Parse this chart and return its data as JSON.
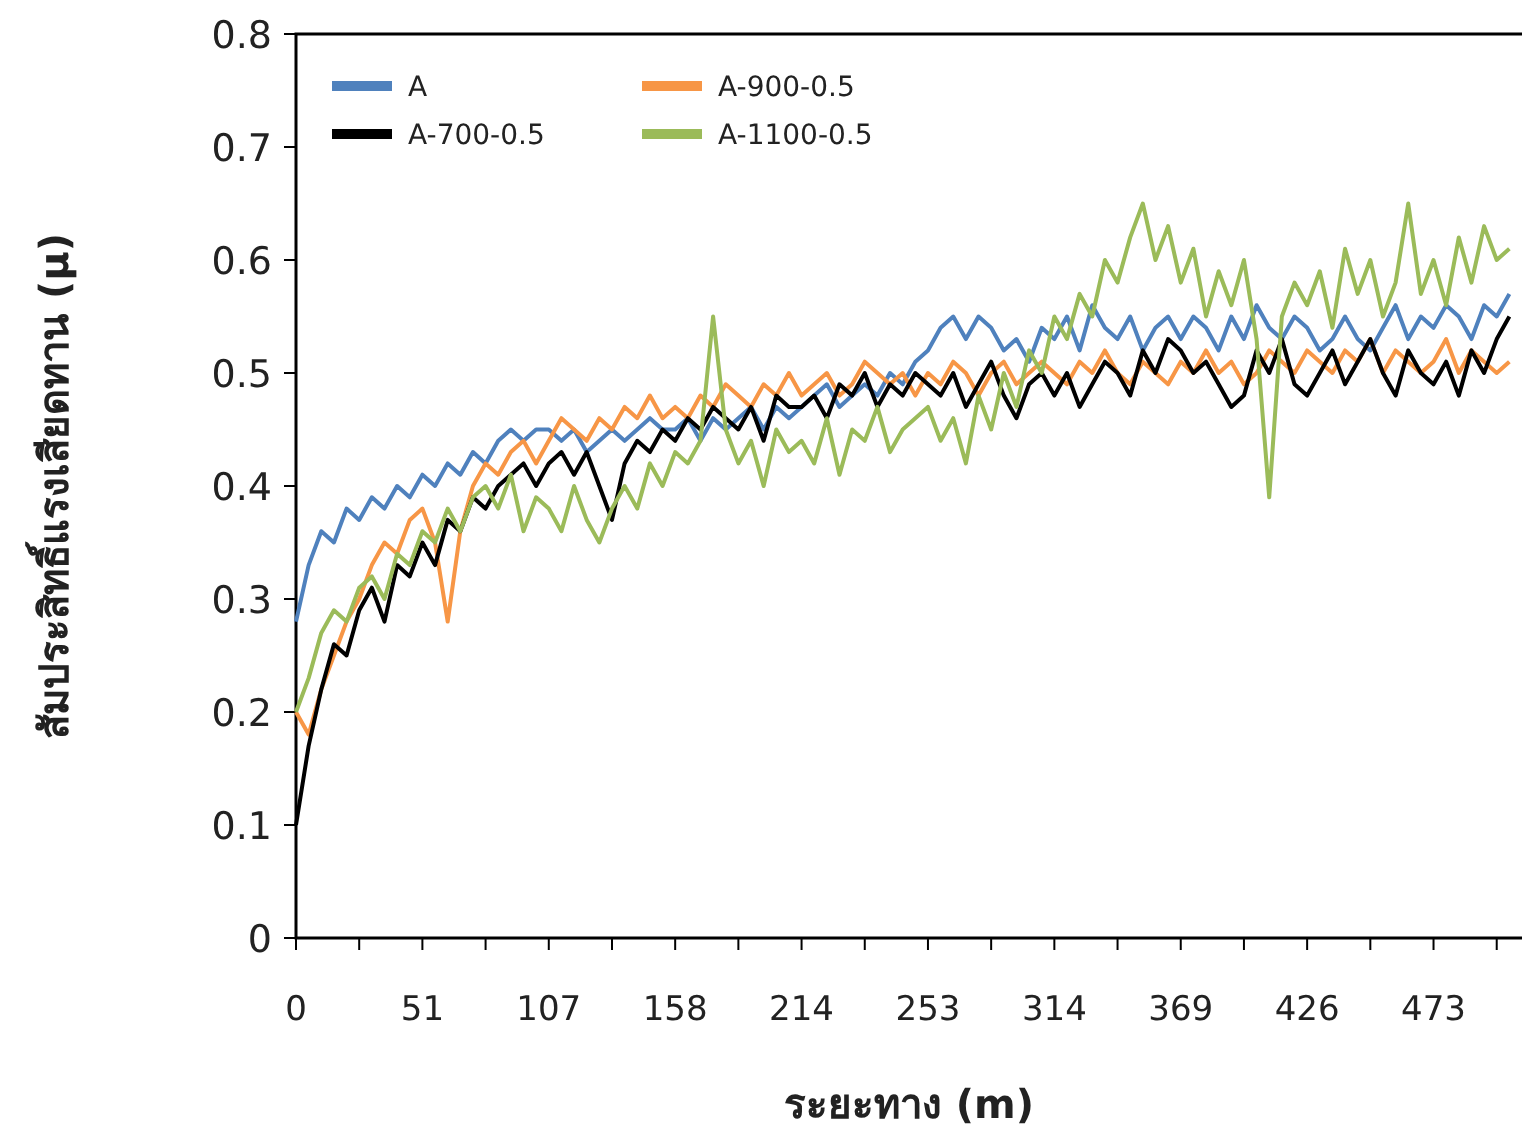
{
  "chart_data": {
    "type": "line",
    "xlabel": "ระยะทาง (m)",
    "ylabel": "สัมประสิทธิ์แรงเสียดทาน (µ)",
    "categories": [
      "0",
      null,
      null,
      null,
      null,
      null,
      null,
      null,
      null,
      null,
      "51",
      null,
      null,
      null,
      null,
      null,
      null,
      null,
      null,
      null,
      "107",
      null,
      null,
      null,
      null,
      null,
      null,
      null,
      null,
      null,
      "158",
      null,
      null,
      null,
      null,
      null,
      null,
      null,
      null,
      null,
      "214",
      null,
      null,
      null,
      null,
      null,
      null,
      null,
      null,
      null,
      "253",
      null,
      null,
      null,
      null,
      null,
      null,
      null,
      null,
      null,
      "314",
      null,
      null,
      null,
      null,
      null,
      null,
      null,
      null,
      null,
      "369",
      null,
      null,
      null,
      null,
      null,
      null,
      null,
      null,
      null,
      "426",
      null,
      null,
      null,
      null,
      null,
      null,
      null,
      null,
      null,
      "473",
      null,
      null,
      null,
      null,
      null,
      null
    ],
    "ylim": [
      0,
      0.8
    ],
    "yticks": [
      0,
      0.1,
      0.2,
      0.3,
      0.4,
      0.5,
      0.6,
      0.7,
      0.8
    ],
    "legend": "top left",
    "series": [
      {
        "name": "A",
        "color": "#4f81bd",
        "values": [
          0.28,
          0.33,
          0.36,
          0.35,
          0.38,
          0.37,
          0.39,
          0.38,
          0.4,
          0.39,
          0.41,
          0.4,
          0.42,
          0.41,
          0.43,
          0.42,
          0.44,
          0.45,
          0.44,
          0.45,
          0.45,
          0.44,
          0.45,
          0.43,
          0.44,
          0.45,
          0.44,
          0.45,
          0.46,
          0.45,
          0.45,
          0.46,
          0.44,
          0.46,
          0.45,
          0.46,
          0.47,
          0.45,
          0.47,
          0.46,
          0.47,
          0.48,
          0.49,
          0.47,
          0.48,
          0.49,
          0.48,
          0.5,
          0.49,
          0.51,
          0.52,
          0.54,
          0.55,
          0.53,
          0.55,
          0.54,
          0.52,
          0.53,
          0.51,
          0.54,
          0.53,
          0.55,
          0.52,
          0.56,
          0.54,
          0.53,
          0.55,
          0.52,
          0.54,
          0.55,
          0.53,
          0.55,
          0.54,
          0.52,
          0.55,
          0.53,
          0.56,
          0.54,
          0.53,
          0.55,
          0.54,
          0.52,
          0.53,
          0.55,
          0.53,
          0.52,
          0.54,
          0.56,
          0.53,
          0.55,
          0.54,
          0.56,
          0.55,
          0.53,
          0.56,
          0.55,
          0.57
        ]
      },
      {
        "name": "A-900-0.5",
        "color": "#f79646",
        "values": [
          0.2,
          0.18,
          0.22,
          0.25,
          0.28,
          0.3,
          0.33,
          0.35,
          0.34,
          0.37,
          0.38,
          0.35,
          0.28,
          0.36,
          0.4,
          0.42,
          0.41,
          0.43,
          0.44,
          0.42,
          0.44,
          0.46,
          0.45,
          0.44,
          0.46,
          0.45,
          0.47,
          0.46,
          0.48,
          0.46,
          0.47,
          0.46,
          0.48,
          0.47,
          0.49,
          0.48,
          0.47,
          0.49,
          0.48,
          0.5,
          0.48,
          0.49,
          0.5,
          0.48,
          0.49,
          0.51,
          0.5,
          0.49,
          0.5,
          0.48,
          0.5,
          0.49,
          0.51,
          0.5,
          0.48,
          0.5,
          0.51,
          0.49,
          0.5,
          0.51,
          0.5,
          0.49,
          0.51,
          0.5,
          0.52,
          0.5,
          0.49,
          0.51,
          0.5,
          0.49,
          0.51,
          0.5,
          0.52,
          0.5,
          0.51,
          0.49,
          0.5,
          0.52,
          0.51,
          0.5,
          0.52,
          0.51,
          0.5,
          0.52,
          0.51,
          0.53,
          0.5,
          0.52,
          0.51,
          0.5,
          0.51,
          0.53,
          0.5,
          0.52,
          0.51,
          0.5,
          0.51
        ]
      },
      {
        "name": "A-700-0.5",
        "color": "#000000",
        "values": [
          0.1,
          0.17,
          0.22,
          0.26,
          0.25,
          0.29,
          0.31,
          0.28,
          0.33,
          0.32,
          0.35,
          0.33,
          0.37,
          0.36,
          0.39,
          0.38,
          0.4,
          0.41,
          0.42,
          0.4,
          0.42,
          0.43,
          0.41,
          0.43,
          0.4,
          0.37,
          0.42,
          0.44,
          0.43,
          0.45,
          0.44,
          0.46,
          0.45,
          0.47,
          0.46,
          0.45,
          0.47,
          0.44,
          0.48,
          0.47,
          0.47,
          0.48,
          0.46,
          0.49,
          0.48,
          0.5,
          0.47,
          0.49,
          0.48,
          0.5,
          0.49,
          0.48,
          0.5,
          0.47,
          0.49,
          0.51,
          0.48,
          0.46,
          0.49,
          0.5,
          0.48,
          0.5,
          0.47,
          0.49,
          0.51,
          0.5,
          0.48,
          0.52,
          0.5,
          0.53,
          0.52,
          0.5,
          0.51,
          0.49,
          0.47,
          0.48,
          0.52,
          0.5,
          0.53,
          0.49,
          0.48,
          0.5,
          0.52,
          0.49,
          0.51,
          0.53,
          0.5,
          0.48,
          0.52,
          0.5,
          0.49,
          0.51,
          0.48,
          0.52,
          0.5,
          0.53,
          0.55
        ]
      },
      {
        "name": "A-1100-0.5",
        "color": "#9bbb59",
        "values": [
          0.2,
          0.23,
          0.27,
          0.29,
          0.28,
          0.31,
          0.32,
          0.3,
          0.34,
          0.33,
          0.36,
          0.35,
          0.38,
          0.36,
          0.39,
          0.4,
          0.38,
          0.41,
          0.36,
          0.39,
          0.38,
          0.36,
          0.4,
          0.37,
          0.35,
          0.38,
          0.4,
          0.38,
          0.42,
          0.4,
          0.43,
          0.42,
          0.44,
          0.55,
          0.45,
          0.42,
          0.44,
          0.4,
          0.45,
          0.43,
          0.44,
          0.42,
          0.46,
          0.41,
          0.45,
          0.44,
          0.47,
          0.43,
          0.45,
          0.46,
          0.47,
          0.44,
          0.46,
          0.42,
          0.48,
          0.45,
          0.5,
          0.47,
          0.52,
          0.5,
          0.55,
          0.53,
          0.57,
          0.55,
          0.6,
          0.58,
          0.62,
          0.65,
          0.6,
          0.63,
          0.58,
          0.61,
          0.55,
          0.59,
          0.56,
          0.6,
          0.53,
          0.39,
          0.55,
          0.58,
          0.56,
          0.59,
          0.54,
          0.61,
          0.57,
          0.6,
          0.55,
          0.58,
          0.65,
          0.57,
          0.6,
          0.56,
          0.62,
          0.58,
          0.63,
          0.6,
          0.61
        ]
      }
    ]
  }
}
